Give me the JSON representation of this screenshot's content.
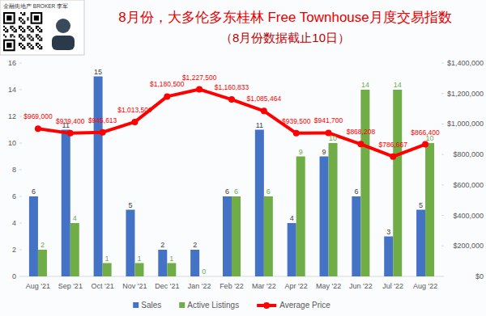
{
  "chart_data": {
    "type": "bar",
    "title": "8月份，大多伦多东桂林 Free Townhouse月度交易指数",
    "subtitle": "（8月份数据截止10日）",
    "annotations": [
      "金融街地产 BROKER 李军"
    ],
    "categories": [
      "Aug '21",
      "Sep '21",
      "Oct '21",
      "Nov '21",
      "Dec '21",
      "Jan '22",
      "Feb '22",
      "Mar '22",
      "Apr '22",
      "May '22",
      "Jun '22",
      "Jul '22",
      "Aug '22"
    ],
    "series": [
      {
        "name": "Sales",
        "type": "bar",
        "color": "#4472c4",
        "values": [
          6,
          11,
          15,
          5,
          2,
          2,
          6,
          11,
          4,
          9,
          6,
          3,
          5
        ]
      },
      {
        "name": "Active Listings",
        "type": "bar",
        "color": "#70ad47",
        "values": [
          2,
          4,
          1,
          1,
          1,
          0,
          6,
          6,
          9,
          10,
          14,
          14,
          10
        ]
      },
      {
        "name": "Average Price",
        "type": "line",
        "axis": "y2",
        "color": "#ff0000",
        "marker": "circle",
        "line_style": "solid",
        "values": [
          969000,
          939400,
          945613,
          1013500,
          1180500,
          1227500,
          1160833,
          1085464,
          939500,
          941700,
          868208,
          786667,
          866400
        ],
        "value_labels": [
          "$969,000",
          "$939,400",
          "$945,613",
          "$1,013,500",
          "$1,180,500",
          "$1,227,500",
          "$1,160,833",
          "$1,085,464",
          "$939,500",
          "$941,700",
          "$868,208",
          "$786,667",
          "$866,400"
        ]
      }
    ],
    "ylim": [
      0,
      16
    ],
    "yticks": [
      0,
      2,
      4,
      6,
      8,
      10,
      12,
      14,
      16
    ],
    "y2lim": [
      0,
      1400000
    ],
    "y2ticks": [
      {
        "value": 0,
        "label": "$0"
      },
      {
        "value": 200000,
        "label": "$200,000"
      },
      {
        "value": 400000,
        "label": "$400,000"
      },
      {
        "value": 600000,
        "label": "$600,000"
      },
      {
        "value": 800000,
        "label": "$800,000"
      },
      {
        "value": 1000000,
        "label": "$1,000,000"
      },
      {
        "value": 1200000,
        "label": "$1,200,000"
      },
      {
        "value": 1400000,
        "label": "$1,400,000"
      }
    ],
    "grid": false,
    "legend": "bottom",
    "data_labels": true
  }
}
